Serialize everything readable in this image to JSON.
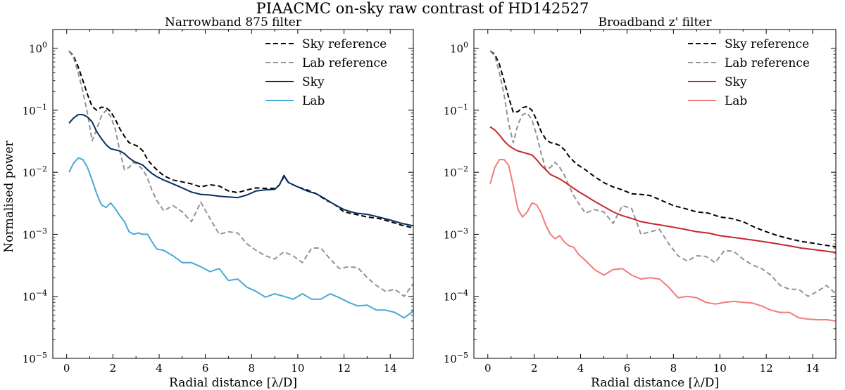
{
  "figure": {
    "suptitle": "PIAACMC on-sky raw contrast of HD142527",
    "ylabel": "Normalised power"
  },
  "chart_data": [
    {
      "type": "line",
      "title": "Narrowband 875 filter",
      "xlabel": "Radial distance [λ/D]",
      "ylabel": "Normalised power",
      "yscale": "log",
      "xlim": [
        -0.6,
        15.0
      ],
      "ylim": [
        1e-05,
        2.0
      ],
      "xticks": [
        0,
        2,
        4,
        6,
        8,
        10,
        12,
        14
      ],
      "yticks": [
        {
          "value": 1,
          "label": "10^0"
        },
        {
          "value": 0.1,
          "label": "10^-1"
        },
        {
          "value": 0.01,
          "label": "10^-2"
        },
        {
          "value": 0.001,
          "label": "10^-3"
        },
        {
          "value": 0.0001,
          "label": "10^-4"
        },
        {
          "value": 1e-05,
          "label": "10^-5"
        }
      ],
      "legend_position": "top-right",
      "series": [
        {
          "name": "Sky reference",
          "color": "#000000",
          "dash": "dashed",
          "x": [
            0.1,
            0.3,
            0.5,
            0.7,
            0.9,
            1.1,
            1.3,
            1.5,
            1.7,
            1.9,
            2.1,
            2.3,
            2.5,
            2.7,
            2.9,
            3.1,
            3.3,
            3.5,
            3.7,
            3.9,
            4.2,
            4.6,
            5.0,
            5.4,
            5.8,
            6.2,
            6.6,
            7.0,
            7.4,
            7.8,
            8.2,
            8.6,
            9.0,
            9.2,
            9.4,
            9.6,
            10.0,
            10.4,
            10.8,
            11.2,
            11.6,
            12.0,
            12.5,
            13.0,
            13.5,
            14.0,
            14.5,
            15.0
          ],
          "y": [
            0.9,
            0.75,
            0.5,
            0.3,
            0.18,
            0.115,
            0.1,
            0.112,
            0.11,
            0.095,
            0.072,
            0.05,
            0.038,
            0.03,
            0.028,
            0.026,
            0.022,
            0.016,
            0.013,
            0.011,
            0.0088,
            0.0075,
            0.007,
            0.0065,
            0.0058,
            0.0063,
            0.006,
            0.005,
            0.0047,
            0.0052,
            0.0056,
            0.0055,
            0.0055,
            0.0062,
            0.0085,
            0.0068,
            0.0058,
            0.0052,
            0.0045,
            0.0036,
            0.003,
            0.0023,
            0.0021,
            0.0019,
            0.0018,
            0.0016,
            0.0014,
            0.00127
          ]
        },
        {
          "name": "Lab reference",
          "color": "#939393",
          "dash": "dashed",
          "x": [
            0.1,
            0.3,
            0.5,
            0.7,
            0.9,
            1.1,
            1.3,
            1.5,
            1.7,
            1.9,
            2.1,
            2.3,
            2.5,
            2.7,
            2.9,
            3.1,
            3.3,
            3.5,
            3.7,
            3.9,
            4.2,
            4.6,
            5.0,
            5.4,
            5.8,
            6.2,
            6.6,
            7.0,
            7.4,
            7.8,
            8.2,
            8.6,
            9.0,
            9.4,
            9.8,
            10.2,
            10.6,
            11.0,
            11.4,
            11.8,
            12.2,
            12.6,
            13.0,
            13.4,
            13.8,
            14.2,
            14.6,
            15.0
          ],
          "y": [
            0.9,
            0.7,
            0.4,
            0.2,
            0.09,
            0.032,
            0.05,
            0.08,
            0.1,
            0.08,
            0.05,
            0.022,
            0.011,
            0.012,
            0.0145,
            0.013,
            0.011,
            0.008,
            0.005,
            0.0035,
            0.0024,
            0.0029,
            0.0023,
            0.0016,
            0.0033,
            0.0018,
            0.001,
            0.0011,
            0.00105,
            0.0007,
            0.00055,
            0.00045,
            0.0004,
            0.00052,
            0.00045,
            0.00035,
            0.0006,
            0.0006,
            0.0004,
            0.00028,
            0.0003,
            0.00029,
            0.0002,
            0.00015,
            0.00012,
            0.00013,
            0.0001,
            0.00016
          ]
        },
        {
          "name": "Sky",
          "color": "#053061",
          "dash": "solid",
          "x": [
            0.1,
            0.3,
            0.5,
            0.7,
            0.9,
            1.1,
            1.3,
            1.5,
            1.7,
            1.9,
            2.1,
            2.3,
            2.5,
            2.7,
            2.9,
            3.1,
            3.3,
            3.5,
            3.7,
            3.9,
            4.2,
            4.6,
            5.0,
            5.4,
            5.8,
            6.2,
            6.6,
            7.0,
            7.4,
            7.8,
            8.2,
            8.6,
            9.0,
            9.2,
            9.4,
            9.6,
            10.0,
            10.4,
            10.8,
            11.2,
            11.6,
            12.0,
            12.5,
            13.0,
            13.5,
            14.0,
            14.5,
            15.0
          ],
          "y": [
            0.062,
            0.075,
            0.085,
            0.085,
            0.078,
            0.065,
            0.045,
            0.035,
            0.028,
            0.024,
            0.023,
            0.022,
            0.02,
            0.017,
            0.015,
            0.014,
            0.013,
            0.011,
            0.0095,
            0.0085,
            0.0075,
            0.0065,
            0.0056,
            0.0048,
            0.0044,
            0.0043,
            0.0041,
            0.004,
            0.0039,
            0.0043,
            0.005,
            0.0052,
            0.0053,
            0.0062,
            0.0089,
            0.0068,
            0.0058,
            0.005,
            0.0045,
            0.0037,
            0.003,
            0.0025,
            0.0022,
            0.0021,
            0.0019,
            0.0017,
            0.0015,
            0.00137
          ]
        },
        {
          "name": "Lab",
          "color": "#4aa8d8",
          "dash": "solid",
          "x": [
            0.1,
            0.3,
            0.5,
            0.7,
            0.9,
            1.1,
            1.3,
            1.5,
            1.7,
            1.9,
            2.1,
            2.3,
            2.5,
            2.7,
            2.9,
            3.1,
            3.3,
            3.5,
            3.7,
            3.9,
            4.2,
            4.6,
            5.0,
            5.4,
            5.8,
            6.2,
            6.6,
            7.0,
            7.4,
            7.8,
            8.2,
            8.6,
            9.0,
            9.4,
            9.8,
            10.2,
            10.6,
            11.0,
            11.4,
            11.8,
            12.2,
            12.6,
            13.0,
            13.4,
            13.8,
            14.2,
            14.6,
            15.0
          ],
          "y": [
            0.01,
            0.014,
            0.017,
            0.016,
            0.012,
            0.0075,
            0.0045,
            0.003,
            0.0027,
            0.0032,
            0.0026,
            0.002,
            0.0016,
            0.0011,
            0.001,
            0.00105,
            0.001,
            0.001,
            0.00075,
            0.00058,
            0.00055,
            0.00045,
            0.00035,
            0.00035,
            0.0003,
            0.00025,
            0.00028,
            0.00018,
            0.00019,
            0.00014,
            0.00012,
            9.7e-05,
            0.00011,
            0.0001,
            9e-05,
            0.00011,
            9e-05,
            9e-05,
            0.00011,
            9.5e-05,
            8e-05,
            7e-05,
            7.2e-05,
            6e-05,
            6e-05,
            5.5e-05,
            4.5e-05,
            5.8e-05
          ]
        }
      ]
    },
    {
      "type": "line",
      "title": "Broadband z' filter",
      "xlabel": "Radial distance [λ/D]",
      "ylabel": "",
      "yscale": "log",
      "xlim": [
        -0.6,
        15.0
      ],
      "ylim": [
        1e-05,
        2.0
      ],
      "xticks": [
        0,
        2,
        4,
        6,
        8,
        10,
        12,
        14
      ],
      "yticks": [
        {
          "value": 1,
          "label": "10^0"
        },
        {
          "value": 0.1,
          "label": "10^-1"
        },
        {
          "value": 0.01,
          "label": "10^-2"
        },
        {
          "value": 0.001,
          "label": "10^-3"
        },
        {
          "value": 0.0001,
          "label": "10^-4"
        },
        {
          "value": 1e-05,
          "label": "10^-5"
        }
      ],
      "legend_position": "top-right",
      "series": [
        {
          "name": "Sky reference",
          "color": "#000000",
          "dash": "dashed",
          "x": [
            0.1,
            0.3,
            0.5,
            0.7,
            0.9,
            1.1,
            1.3,
            1.5,
            1.7,
            1.9,
            2.1,
            2.3,
            2.5,
            2.7,
            2.9,
            3.1,
            3.3,
            3.5,
            3.7,
            3.9,
            4.2,
            4.6,
            5.0,
            5.4,
            5.8,
            6.2,
            6.6,
            7.0,
            7.5,
            8.0,
            8.5,
            9.0,
            9.5,
            10.0,
            10.5,
            11.0,
            11.5,
            12.0,
            12.5,
            13.0,
            13.5,
            14.0,
            14.5,
            15.0
          ],
          "y": [
            0.9,
            0.8,
            0.55,
            0.3,
            0.16,
            0.092,
            0.095,
            0.11,
            0.115,
            0.1,
            0.07,
            0.045,
            0.034,
            0.03,
            0.029,
            0.027,
            0.023,
            0.018,
            0.015,
            0.013,
            0.011,
            0.0085,
            0.0068,
            0.0058,
            0.0052,
            0.0045,
            0.0044,
            0.0042,
            0.0035,
            0.0029,
            0.0026,
            0.0023,
            0.0022,
            0.0019,
            0.0018,
            0.0016,
            0.0013,
            0.0011,
            0.00095,
            0.00085,
            0.00077,
            0.00072,
            0.00067,
            0.00063
          ]
        },
        {
          "name": "Lab reference",
          "color": "#939393",
          "dash": "dashed",
          "x": [
            0.1,
            0.3,
            0.5,
            0.7,
            0.9,
            1.1,
            1.3,
            1.5,
            1.7,
            1.9,
            2.1,
            2.3,
            2.5,
            2.7,
            2.9,
            3.1,
            3.3,
            3.5,
            3.7,
            3.9,
            4.2,
            4.6,
            5.0,
            5.4,
            5.8,
            6.2,
            6.6,
            7.0,
            7.4,
            7.8,
            8.2,
            8.6,
            9.0,
            9.4,
            9.8,
            10.2,
            10.6,
            11.0,
            11.4,
            11.8,
            12.2,
            12.6,
            13.0,
            13.4,
            13.8,
            14.2,
            14.6,
            15.0
          ],
          "y": [
            0.9,
            0.75,
            0.4,
            0.18,
            0.06,
            0.03,
            0.06,
            0.085,
            0.09,
            0.07,
            0.04,
            0.02,
            0.011,
            0.012,
            0.0145,
            0.012,
            0.009,
            0.006,
            0.0042,
            0.0032,
            0.0022,
            0.0025,
            0.0023,
            0.0015,
            0.0029,
            0.0026,
            0.001,
            0.0011,
            0.0012,
            0.0007,
            0.00045,
            0.00037,
            0.00045,
            0.00044,
            0.00035,
            0.00055,
            0.00053,
            0.0004,
            0.00032,
            0.00028,
            0.00022,
            0.00015,
            0.00013,
            0.00013,
            0.0001,
            0.00012,
            0.00015,
            0.00011
          ]
        },
        {
          "name": "Sky",
          "color": "#c6282b",
          "dash": "solid",
          "x": [
            0.1,
            0.3,
            0.5,
            0.7,
            0.9,
            1.1,
            1.3,
            1.5,
            1.7,
            1.9,
            2.1,
            2.3,
            2.5,
            2.7,
            2.9,
            3.1,
            3.3,
            3.5,
            3.7,
            3.9,
            4.2,
            4.6,
            5.0,
            5.4,
            5.8,
            6.2,
            6.6,
            7.0,
            7.5,
            8.0,
            8.5,
            9.0,
            9.5,
            10.0,
            10.5,
            11.0,
            11.5,
            12.0,
            12.5,
            13.0,
            13.5,
            14.0,
            14.5,
            15.0
          ],
          "y": [
            0.054,
            0.048,
            0.04,
            0.032,
            0.027,
            0.024,
            0.022,
            0.021,
            0.02,
            0.019,
            0.016,
            0.013,
            0.011,
            0.0092,
            0.0085,
            0.0078,
            0.007,
            0.0062,
            0.0055,
            0.0049,
            0.0042,
            0.0034,
            0.0028,
            0.0023,
            0.002,
            0.0018,
            0.0016,
            0.0015,
            0.0014,
            0.0013,
            0.0012,
            0.0011,
            0.00105,
            0.00095,
            0.0009,
            0.00085,
            0.0008,
            0.00075,
            0.0007,
            0.00065,
            0.0006,
            0.00057,
            0.00054,
            0.00051
          ]
        },
        {
          "name": "Lab",
          "color": "#f27b7b",
          "dash": "solid",
          "x": [
            0.1,
            0.3,
            0.5,
            0.7,
            0.9,
            1.1,
            1.3,
            1.5,
            1.7,
            1.9,
            2.1,
            2.3,
            2.5,
            2.7,
            2.9,
            3.1,
            3.3,
            3.5,
            3.7,
            3.9,
            4.2,
            4.6,
            5.0,
            5.4,
            5.8,
            6.2,
            6.6,
            7.0,
            7.4,
            7.8,
            8.2,
            8.6,
            9.0,
            9.4,
            9.8,
            10.2,
            10.6,
            11.0,
            11.4,
            11.8,
            12.2,
            12.6,
            13.0,
            13.4,
            13.8,
            14.2,
            14.6,
            15.0
          ],
          "y": [
            0.0065,
            0.012,
            0.016,
            0.016,
            0.013,
            0.006,
            0.0025,
            0.0019,
            0.0023,
            0.0032,
            0.003,
            0.0022,
            0.0014,
            0.001,
            0.00085,
            0.00095,
            0.00075,
            0.00065,
            0.00062,
            0.00048,
            0.00038,
            0.00027,
            0.00022,
            0.00027,
            0.00028,
            0.00022,
            0.00019,
            0.0002,
            0.00019,
            0.00014,
            9.5e-05,
            0.0001,
            9.5e-05,
            8e-05,
            7.5e-05,
            8e-05,
            8.3e-05,
            8e-05,
            7.8e-05,
            7e-05,
            6e-05,
            5.5e-05,
            5.5e-05,
            4.5e-05,
            4.3e-05,
            4.2e-05,
            4.2e-05,
            4e-05
          ]
        }
      ]
    }
  ]
}
